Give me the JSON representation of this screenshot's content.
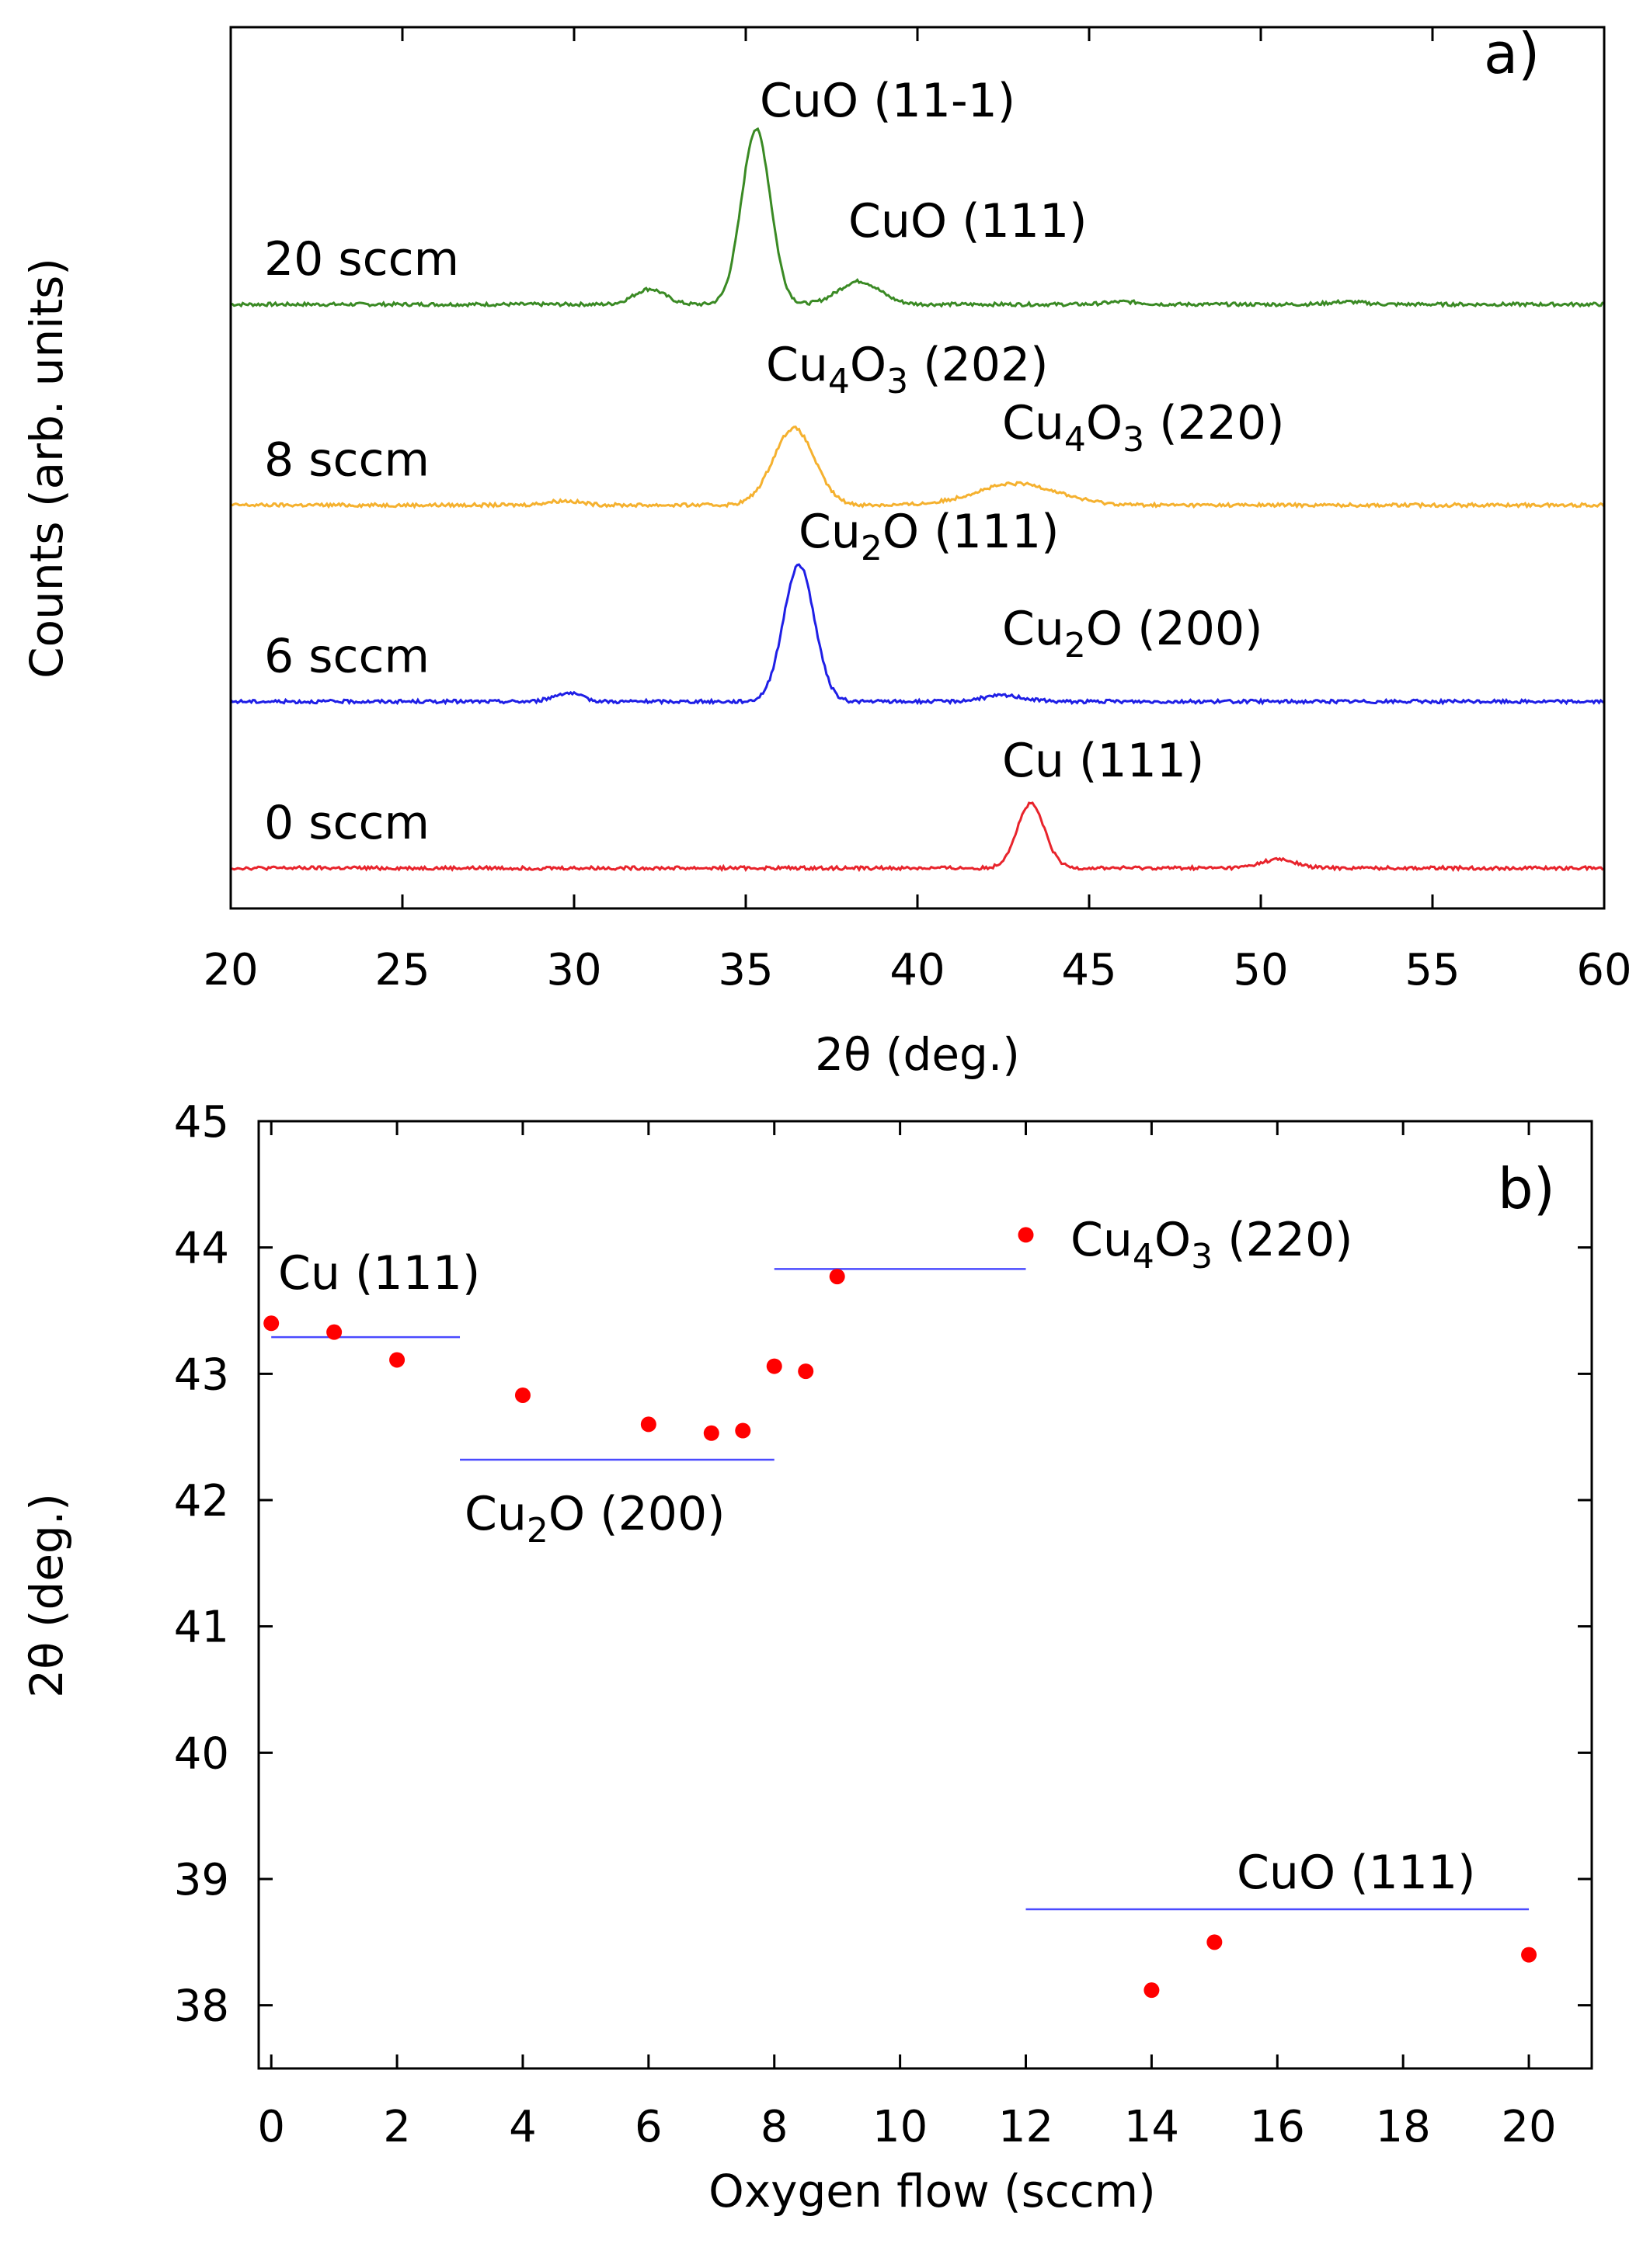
{
  "chart_data": [
    {
      "type": "line",
      "panel_label": "a)",
      "xlabel": "2θ (deg.)",
      "ylabel": "Counts (arb. units)",
      "xlim": [
        20,
        60
      ],
      "xticks": [
        "20",
        "25",
        "30",
        "35",
        "40",
        "45",
        "50",
        "55",
        "60"
      ],
      "series": [
        {
          "name": "20 sccm",
          "color": "#3a8a24",
          "baseline": 6.6,
          "peaks": [
            {
              "x": 32.2,
              "h": 0.18,
              "w": 0.45
            },
            {
              "x": 35.3,
              "h": 2.05,
              "w": 0.42
            },
            {
              "x": 38.3,
              "h": 0.27,
              "w": 0.6
            },
            {
              "x": 46.0,
              "h": 0.03,
              "w": 0.5
            },
            {
              "x": 52.5,
              "h": 0.03,
              "w": 0.5
            }
          ]
        },
        {
          "name": "8 sccm",
          "color": "#f5b12f",
          "baseline": 4.25,
          "peaks": [
            {
              "x": 29.7,
              "h": 0.05,
              "w": 0.5
            },
            {
              "x": 36.4,
              "h": 0.9,
              "w": 0.6
            },
            {
              "x": 42.9,
              "h": 0.25,
              "w": 1.2
            }
          ]
        },
        {
          "name": "6 sccm",
          "color": "#1f1fe6",
          "baseline": 1.95,
          "peaks": [
            {
              "x": 29.8,
              "h": 0.1,
              "w": 0.4
            },
            {
              "x": 36.55,
              "h": 1.6,
              "w": 0.45
            },
            {
              "x": 42.5,
              "h": 0.07,
              "w": 0.6
            }
          ]
        },
        {
          "name": "0 sccm",
          "color": "#e8242c",
          "baseline": 0.0,
          "peaks": [
            {
              "x": 43.3,
              "h": 0.75,
              "w": 0.4
            },
            {
              "x": 50.5,
              "h": 0.1,
              "w": 0.5
            }
          ]
        }
      ],
      "annotations": [
        {
          "text": "CuO (11-1)",
          "x": 35.3
        },
        {
          "text": "CuO (111)",
          "x": 38.3
        },
        {
          "text": "Cu4O3 (202)",
          "x": 36.4
        },
        {
          "text": "Cu4O3 (220)",
          "x": 42.9
        },
        {
          "text": "Cu2O (111)",
          "x": 36.55
        },
        {
          "text": "Cu2O (200)",
          "x": 42.5
        },
        {
          "text": "Cu (111)",
          "x": 43.3
        }
      ]
    },
    {
      "type": "scatter",
      "panel_label": "b)",
      "xlabel": "Oxygen flow (sccm)",
      "ylabel": "2θ (deg.)",
      "xlim": [
        -0.2,
        21
      ],
      "ylim": [
        37.5,
        45
      ],
      "xticks": [
        "0",
        "2",
        "4",
        "6",
        "8",
        "10",
        "12",
        "14",
        "16",
        "18",
        "20"
      ],
      "yticks": [
        "38",
        "39",
        "40",
        "41",
        "42",
        "43",
        "44",
        "45"
      ],
      "x": [
        0,
        1,
        2,
        4,
        6,
        7,
        7.5,
        8,
        8.5,
        9,
        12,
        14,
        15,
        20
      ],
      "y": [
        43.4,
        43.33,
        43.11,
        42.83,
        42.6,
        42.53,
        42.55,
        43.06,
        43.02,
        43.77,
        44.1,
        38.12,
        38.5,
        38.4
      ],
      "point_color": "#ff0000",
      "reference_lines": [
        {
          "label": "Cu (111)",
          "x0": 0,
          "x1": 3,
          "y": 43.29
        },
        {
          "label": "Cu2O (200)",
          "x0": 3,
          "x1": 8,
          "y": 42.32
        },
        {
          "label": "Cu4O3 (220)",
          "x0": 8,
          "x1": 12,
          "y": 43.83
        },
        {
          "label": "CuO (111)",
          "x0": 12,
          "x1": 20,
          "y": 38.76
        }
      ],
      "line_color": "#4a4aff"
    }
  ]
}
